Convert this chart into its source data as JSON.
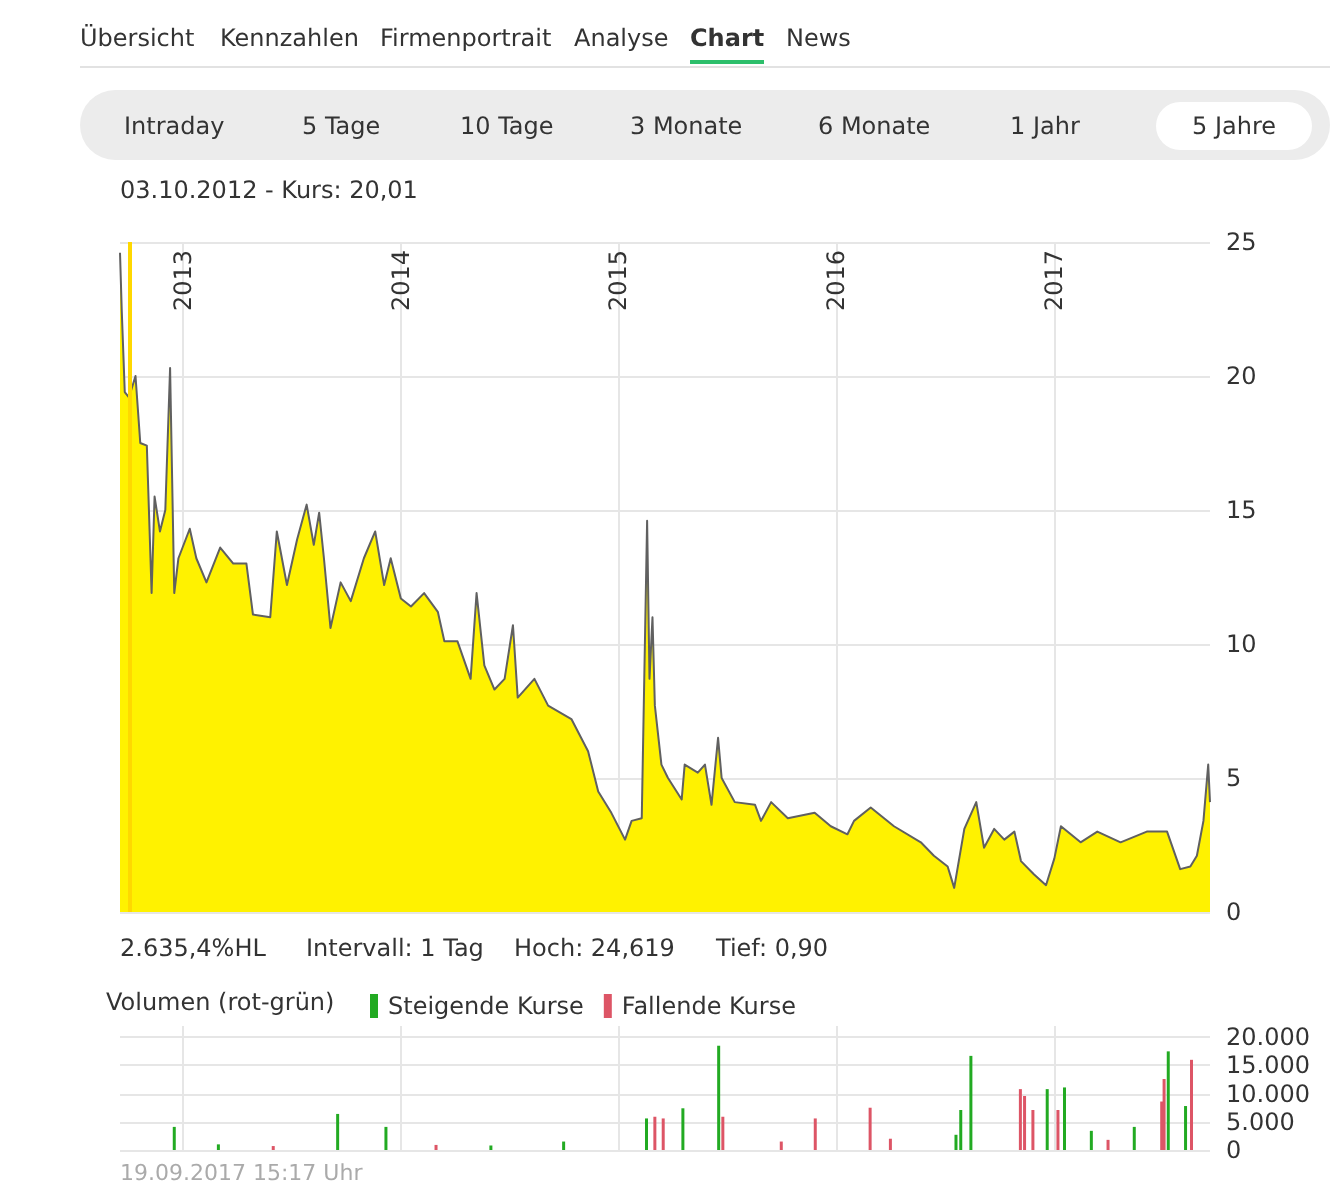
{
  "chart_data": [
    {
      "type": "area",
      "title": null,
      "annotations": [
        "Übersicht",
        "Kennzahlen",
        "Firmenportrait",
        "Analyse",
        "Chart",
        "News",
        "Intraday",
        "5 Tage",
        "10 Tage",
        "3 Monate",
        "6 Monate",
        "1 Jahr",
        "5 Jahre",
        "2.635,4%HL",
        "Intervall: 1 Tag",
        "Hoch:  24,619",
        "Tief:  0,90"
      ],
      "x": [
        "2012-09-17",
        "2012-09-20",
        "2012-09-25",
        "2012-10-02",
        "2012-10-13",
        "2012-10-21",
        "2012-11-01",
        "2012-11-09",
        "2012-11-14",
        "2012-11-23",
        "2012-12-02",
        "2012-12-10",
        "2012-12-17",
        "2012-12-24",
        "2013-01-12",
        "2013-01-23",
        "2013-02-09",
        "2013-03-04",
        "2013-03-26",
        "2013-04-17",
        "2013-04-28",
        "2013-05-27",
        "2013-06-07",
        "2013-06-24",
        "2013-07-11",
        "2013-07-27",
        "2013-08-08",
        "2013-08-17",
        "2013-08-25",
        "2013-09-05",
        "2013-09-22",
        "2013-10-09",
        "2013-10-31",
        "2013-11-19",
        "2013-12-04",
        "2013-12-15",
        "2014-01-01",
        "2014-01-18",
        "2014-02-09",
        "2014-03-04",
        "2014-03-15",
        "2014-04-06",
        "2014-04-28",
        "2014-05-08",
        "2014-05-21",
        "2014-06-07",
        "2014-06-24",
        "2014-07-08",
        "2014-07-16",
        "2014-08-13",
        "2014-09-05",
        "2014-10-14",
        "2014-11-11",
        "2014-11-28",
        "2014-12-20",
        "2015-01-12",
        "2015-01-23",
        "2015-02-09",
        "2015-02-18",
        "2015-02-22",
        "2015-02-27",
        "2015-03-03",
        "2015-03-14",
        "2015-03-25",
        "2015-04-17",
        "2015-04-22",
        "2015-05-14",
        "2015-05-26",
        "2015-06-06",
        "2015-06-17",
        "2015-06-23",
        "2015-07-15",
        "2015-08-18",
        "2015-08-28",
        "2015-09-14",
        "2015-10-12",
        "2015-11-26",
        "2015-12-23",
        "2016-01-20",
        "2016-01-31",
        "2016-02-28",
        "2016-04-07",
        "2016-05-22",
        "2016-06-13",
        "2016-07-06",
        "2016-07-17",
        "2016-08-03",
        "2016-08-23",
        "2016-09-05",
        "2016-09-22",
        "2016-10-09",
        "2016-10-26",
        "2016-11-06",
        "2016-11-28",
        "2016-12-18",
        "2017-01-01",
        "2017-01-12",
        "2017-02-14",
        "2017-03-14",
        "2017-04-22",
        "2017-06-05",
        "2017-07-09",
        "2017-07-31",
        "2017-08-17",
        "2017-08-28",
        "2017-09-08",
        "2017-09-16",
        "2017-09-19"
      ],
      "series": [
        {
          "color": "#fff200",
          "values": [
            24.6,
            22.4,
            19.4,
            19.2,
            20.0,
            17.5,
            17.4,
            11.9,
            15.5,
            14.2,
            15.0,
            20.3,
            11.9,
            13.2,
            14.3,
            13.2,
            12.3,
            13.6,
            13.0,
            13.0,
            11.1,
            11.0,
            14.2,
            12.2,
            13.9,
            15.2,
            13.7,
            14.9,
            13.2,
            10.6,
            12.3,
            11.6,
            13.2,
            14.2,
            12.2,
            13.2,
            11.7,
            11.4,
            11.9,
            11.2,
            10.1,
            10.1,
            8.7,
            11.9,
            9.2,
            8.3,
            8.7,
            10.7,
            8.0,
            8.7,
            7.7,
            7.2,
            6.0,
            4.5,
            3.7,
            2.7,
            3.4,
            3.5,
            14.6,
            8.7,
            11.0,
            7.7,
            5.5,
            5.0,
            4.2,
            5.5,
            5.2,
            5.5,
            4.0,
            6.5,
            5.0,
            4.1,
            4.0,
            3.4,
            4.1,
            3.5,
            3.7,
            3.2,
            2.9,
            3.4,
            3.9,
            3.2,
            2.6,
            2.1,
            1.7,
            0.9,
            3.1,
            4.1,
            2.4,
            3.1,
            2.7,
            3.0,
            1.9,
            1.4,
            1.0,
            2.0,
            3.2,
            2.6,
            3.0,
            2.6,
            3.0,
            3.0,
            1.6,
            1.7,
            2.1,
            3.4,
            5.5,
            4.1
          ]
        }
      ],
      "xlim": [
        "2012-09-17",
        "2017-09-19"
      ],
      "xticks": [
        "2013",
        "2014",
        "2015",
        "2016",
        "2017"
      ],
      "ylim": [
        0,
        25
      ],
      "yticks": [
        0,
        5,
        10,
        15,
        20,
        25
      ],
      "grid": true,
      "ref_lines": [
        {
          "axis": "x",
          "value": "2012-10-03",
          "label": "03.10.2012  -  Kurs: 20,01",
          "color": "#ffd800"
        }
      ]
    },
    {
      "type": "bar",
      "title": "Volumen (rot-grün)",
      "legend": "top left",
      "tick_labels": "y",
      "grid": true,
      "annotations": [
        "19.09.2017 15:17 Uhr"
      ],
      "xlim": [
        "2012-09-17",
        "2017-09-19"
      ],
      "xticks": [
        "2013",
        "2014",
        "2015",
        "2016",
        "2017"
      ],
      "ylim": [
        0,
        22000
      ],
      "yticks": [
        0,
        {
          "value": 5000,
          "label": "5.000"
        },
        {
          "value": 10000,
          "label": "10.000"
        },
        {
          "value": 15000,
          "label": "15.000"
        },
        {
          "value": 20000,
          "label": "20.000"
        }
      ],
      "series": [
        {
          "name": "Steigende Kurse",
          "color": "#22aa22",
          "x": [
            "2012-12-17",
            "2013-03-01",
            "2013-09-17",
            "2013-12-07",
            "2014-06-01",
            "2014-10-01",
            "2015-02-17",
            "2015-04-19",
            "2015-06-18",
            "2016-07-20",
            "2016-07-28",
            "2016-08-14",
            "2016-12-20",
            "2017-01-18",
            "2017-03-04",
            "2017-05-15",
            "2017-07-11",
            "2017-08-09"
          ],
          "values": [
            4100,
            1000,
            6400,
            4100,
            800,
            1500,
            5600,
            7400,
            18500,
            2700,
            7100,
            16700,
            10800,
            11100,
            3400,
            4100,
            17500,
            7800
          ]
        },
        {
          "name": "Fallende Kurse",
          "color": "#dd5566",
          "x": [
            "2013-06-01",
            "2014-03-01",
            "2015-03-03",
            "2015-03-17",
            "2015-06-25",
            "2015-10-01",
            "2015-11-27",
            "2016-02-27",
            "2016-04-01",
            "2016-11-05",
            "2016-11-12",
            "2016-11-26",
            "2017-01-07",
            "2017-04-01",
            "2017-06-30",
            "2017-07-04",
            "2017-08-19"
          ],
          "values": [
            700,
            900,
            5900,
            5600,
            5900,
            1500,
            5600,
            7500,
            2000,
            10800,
            9600,
            7100,
            7100,
            1800,
            8600,
            12600,
            16000
          ]
        }
      ]
    }
  ]
}
